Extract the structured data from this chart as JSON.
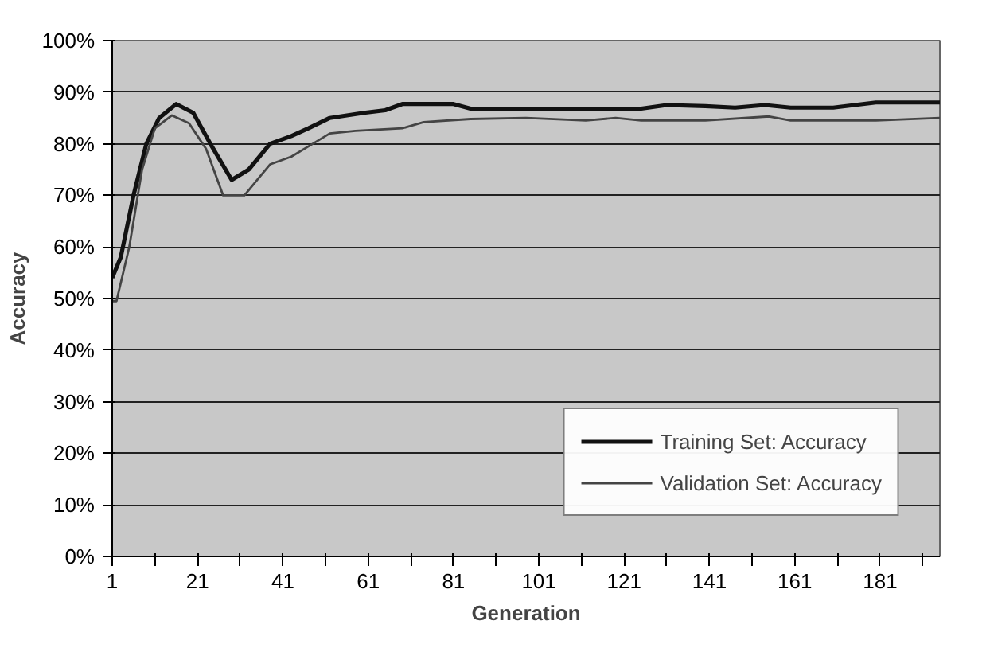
{
  "chart_data": {
    "type": "line",
    "xlabel": "Generation",
    "ylabel": "Accuracy",
    "xlim": [
      1,
      195
    ],
    "xticks": [
      1,
      {
        "value": 11,
        "label": null
      },
      21,
      {
        "value": 31,
        "label": null
      },
      41,
      {
        "value": 51,
        "label": null
      },
      61,
      {
        "value": 71,
        "label": null
      },
      81,
      {
        "value": 91,
        "label": null
      },
      101,
      {
        "value": 111,
        "label": null
      },
      121,
      {
        "value": 131,
        "label": null
      },
      141,
      {
        "value": 151,
        "label": null
      },
      161,
      {
        "value": 171,
        "label": null
      },
      181,
      {
        "value": 191,
        "label": null
      }
    ],
    "ylim": [
      0,
      100
    ],
    "yticks": [
      {
        "value": 0,
        "label": "0%"
      },
      {
        "value": 10,
        "label": "10%"
      },
      {
        "value": 20,
        "label": "20%"
      },
      {
        "value": 30,
        "label": "30%"
      },
      {
        "value": 40,
        "label": "40%"
      },
      {
        "value": 50,
        "label": "50%"
      },
      {
        "value": 60,
        "label": "60%"
      },
      {
        "value": 70,
        "label": "70%"
      },
      {
        "value": 80,
        "label": "80%"
      },
      {
        "value": 90,
        "label": "90%"
      },
      {
        "value": 100,
        "label": "100%"
      }
    ],
    "grid": "y",
    "legend": "bottom right",
    "marker": "none",
    "line_style": "solid",
    "series": [
      {
        "name": "Training Set: Accuracy",
        "color": "#111111",
        "x": [
          1,
          3,
          6,
          9,
          12,
          16,
          20,
          24,
          29,
          33,
          38,
          43,
          47,
          52,
          56,
          60,
          65,
          69,
          75,
          81,
          85,
          98,
          112,
          125,
          131,
          140,
          147,
          154,
          160,
          170,
          180,
          195
        ],
        "values": [
          54,
          58,
          70,
          80,
          85,
          87.7,
          86,
          80,
          73,
          75,
          80,
          81.5,
          83,
          85,
          85.5,
          86,
          86.5,
          87.7,
          87.7,
          87.7,
          86.8,
          86.8,
          86.8,
          86.8,
          87.5,
          87.3,
          87,
          87.5,
          87,
          87,
          88,
          88
        ]
      },
      {
        "name": "Validation Set: Accuracy",
        "color": "#444444",
        "x": [
          1,
          2,
          5,
          8,
          11,
          15,
          19,
          23,
          27,
          32,
          35,
          38,
          43,
          47,
          52,
          58,
          69,
          74,
          85,
          98,
          112,
          119,
          125,
          140,
          155,
          160,
          180,
          195
        ],
        "values": [
          49.5,
          49.5,
          60,
          75,
          83,
          85.5,
          84,
          79,
          70,
          70,
          73,
          76,
          77.5,
          79.5,
          82,
          82.5,
          83,
          84.2,
          84.8,
          85,
          84.5,
          85,
          84.5,
          84.5,
          85.3,
          84.5,
          84.5,
          85
        ]
      }
    ]
  }
}
